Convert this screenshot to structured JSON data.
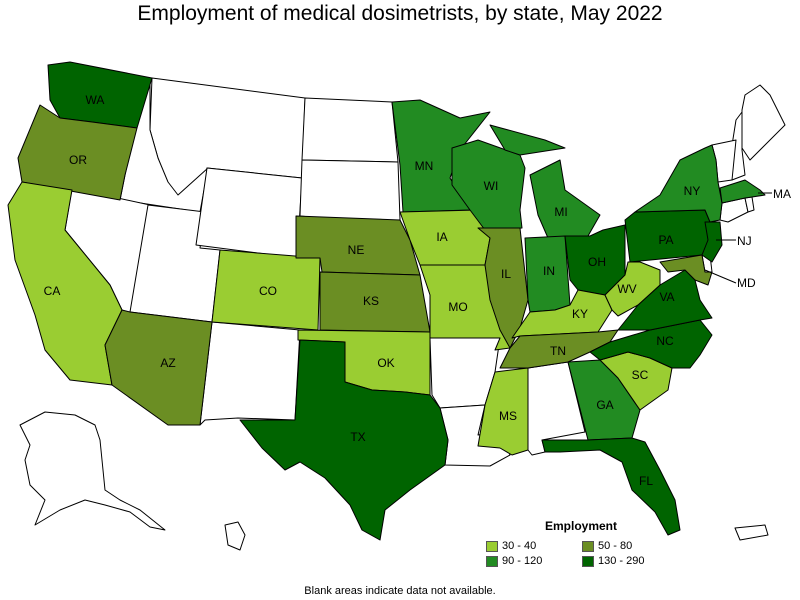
{
  "title": "Employment of medical dosimetrists, by state, May 2022",
  "legend": {
    "title": "Employment",
    "items": [
      {
        "label": "30 - 40",
        "color": "#9acd32"
      },
      {
        "label": "50 - 80",
        "color": "#6b8e23"
      },
      {
        "label": "90 - 120",
        "color": "#228b22"
      },
      {
        "label": "130 - 290",
        "color": "#006400"
      }
    ]
  },
  "footnote": "Blank areas indicate data not available.",
  "colors": {
    "c30_40": "#9acd32",
    "c50_80": "#6b8e23",
    "c90_120": "#228b22",
    "c130_290": "#006400",
    "blank": "#ffffff"
  },
  "states": [
    {
      "abbr": "WA",
      "bin": "130 - 290"
    },
    {
      "abbr": "OR",
      "bin": "50 - 80"
    },
    {
      "abbr": "CA",
      "bin": "30 - 40"
    },
    {
      "abbr": "AZ",
      "bin": "50 - 80"
    },
    {
      "abbr": "CO",
      "bin": "30 - 40"
    },
    {
      "abbr": "NE",
      "bin": "50 - 80"
    },
    {
      "abbr": "KS",
      "bin": "50 - 80"
    },
    {
      "abbr": "OK",
      "bin": "30 - 40"
    },
    {
      "abbr": "TX",
      "bin": "130 - 290"
    },
    {
      "abbr": "MN",
      "bin": "90 - 120"
    },
    {
      "abbr": "IA",
      "bin": "30 - 40"
    },
    {
      "abbr": "MO",
      "bin": "30 - 40"
    },
    {
      "abbr": "WI",
      "bin": "90 - 120"
    },
    {
      "abbr": "IL",
      "bin": "50 - 80"
    },
    {
      "abbr": "MI",
      "bin": "90 - 120"
    },
    {
      "abbr": "IN",
      "bin": "90 - 120"
    },
    {
      "abbr": "OH",
      "bin": "130 - 290"
    },
    {
      "abbr": "KY",
      "bin": "30 - 40"
    },
    {
      "abbr": "TN",
      "bin": "50 - 80"
    },
    {
      "abbr": "MS",
      "bin": "30 - 40"
    },
    {
      "abbr": "GA",
      "bin": "90 - 120"
    },
    {
      "abbr": "FL",
      "bin": "130 - 290"
    },
    {
      "abbr": "SC",
      "bin": "30 - 40"
    },
    {
      "abbr": "NC",
      "bin": "130 - 290"
    },
    {
      "abbr": "VA",
      "bin": "130 - 290"
    },
    {
      "abbr": "WV",
      "bin": "30 - 40"
    },
    {
      "abbr": "PA",
      "bin": "130 - 290"
    },
    {
      "abbr": "NY",
      "bin": "90 - 120"
    },
    {
      "abbr": "NJ",
      "bin": "130 - 290"
    },
    {
      "abbr": "MD",
      "bin": "50 - 80"
    },
    {
      "abbr": "MA",
      "bin": "90 - 120"
    }
  ]
}
